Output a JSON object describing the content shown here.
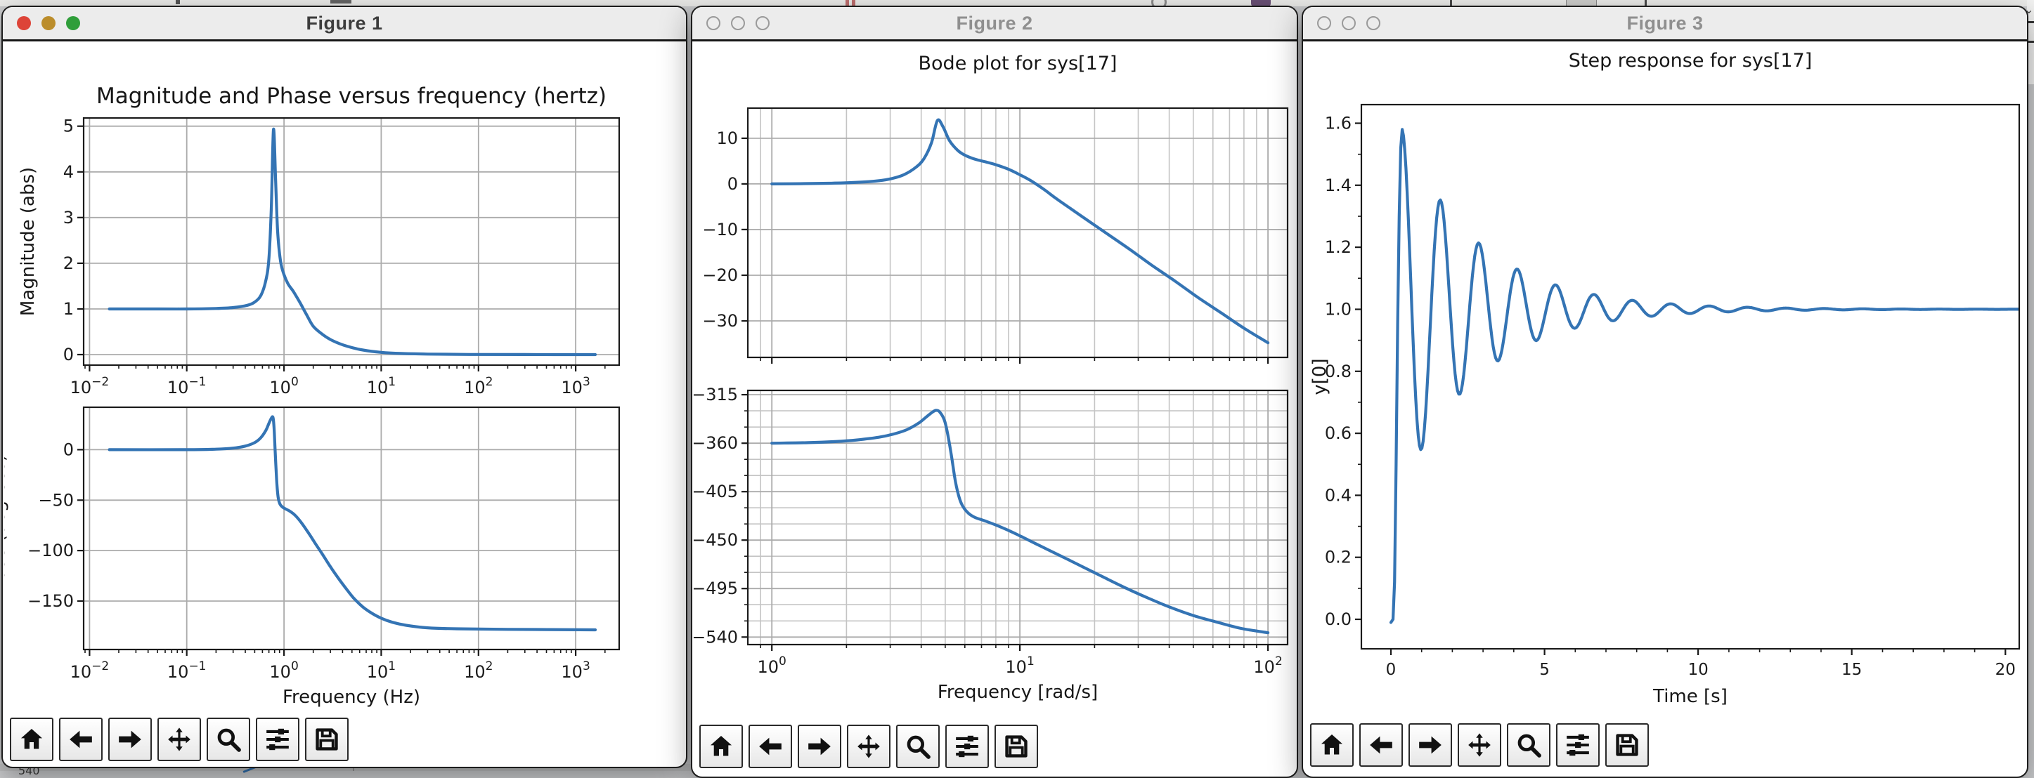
{
  "windows": [
    {
      "title": "Figure 1",
      "active": true,
      "traffic_lights": {
        "close": "#dd4438",
        "minimize": "#bb8d2b",
        "zoom": "#2f9e3a"
      },
      "toolbar": [
        "home",
        "back",
        "forward",
        "pan",
        "zoom-rect",
        "configure-subplots",
        "save"
      ]
    },
    {
      "title": "Figure 2",
      "active": false,
      "traffic_lights": {
        "style": "inactive"
      },
      "toolbar": [
        "home",
        "back",
        "forward",
        "pan",
        "zoom-rect",
        "configure-subplots",
        "save"
      ]
    },
    {
      "title": "Figure 3",
      "active": false,
      "traffic_lights": {
        "style": "inactive"
      },
      "toolbar": [
        "home",
        "back",
        "forward",
        "pan",
        "zoom-rect",
        "configure-subplots",
        "save"
      ]
    }
  ],
  "background": {
    "top_icons": [
      "pause-icon",
      "circle-icon",
      "app-badge-icon",
      "chevron-down-icon"
    ],
    "bottom_fragment": "540",
    "accent_line_color": "#3474b4"
  },
  "chart_data": [
    {
      "figure": "Figure 1",
      "type": "line",
      "suptitle": "Magnitude and Phase versus frequency (hertz)",
      "line_color": "#3474b4",
      "subplots": [
        {
          "name": "magnitude-abs",
          "ylabel": "Magnitude (abs)",
          "xscale": "log",
          "xlim": [
            0.0087,
            2800
          ],
          "ylim": [
            -0.23,
            5.18
          ],
          "yticks": [
            0,
            1,
            2,
            3,
            4,
            5
          ],
          "xticks_log": [
            -2,
            -1,
            0,
            1,
            2,
            3
          ],
          "show_xticklabels": true,
          "grid": {
            "major": true,
            "minor_x": false,
            "minor_y": false
          },
          "minor_ticks": {
            "x": true,
            "y": false
          },
          "points": [
            [
              0.016,
              1.0
            ],
            [
              0.05,
              1.0
            ],
            [
              0.1,
              1.0
            ],
            [
              0.2,
              1.01
            ],
            [
              0.3,
              1.03
            ],
            [
              0.42,
              1.08
            ],
            [
              0.5,
              1.15
            ],
            [
              0.58,
              1.3
            ],
            [
              0.65,
              1.62
            ],
            [
              0.7,
              2.1
            ],
            [
              0.74,
              3.2
            ],
            [
              0.78,
              4.93
            ],
            [
              0.82,
              3.8
            ],
            [
              0.86,
              2.7
            ],
            [
              0.92,
              2.05
            ],
            [
              1.0,
              1.75
            ],
            [
              1.1,
              1.55
            ],
            [
              1.25,
              1.38
            ],
            [
              1.45,
              1.15
            ],
            [
              1.7,
              0.88
            ],
            [
              2.0,
              0.62
            ],
            [
              2.5,
              0.44
            ],
            [
              3.2,
              0.3
            ],
            [
              4.5,
              0.18
            ],
            [
              6.5,
              0.1
            ],
            [
              10,
              0.05
            ],
            [
              16,
              0.025
            ],
            [
              30,
              0.012
            ],
            [
              80,
              0.004
            ],
            [
              300,
              0.0015
            ],
            [
              1591,
              0.0006
            ]
          ]
        },
        {
          "name": "phase-degrees",
          "ylabel": "Phase (degrees)",
          "ylabel_clipped_by_window_edge": true,
          "xlabel": "Frequency (Hz)",
          "xscale": "log",
          "xlim": [
            0.0087,
            2800
          ],
          "ylim": [
            -198,
            42
          ],
          "yticks": [
            0,
            -50,
            -100,
            -150
          ],
          "xticks_log": [
            -2,
            -1,
            0,
            1,
            2,
            3
          ],
          "show_xticklabels": true,
          "grid": {
            "major": true,
            "minor_x": false,
            "minor_y": false
          },
          "minor_ticks": {
            "x": true,
            "y": false
          },
          "points": [
            [
              0.016,
              0
            ],
            [
              0.1,
              0
            ],
            [
              0.2,
              0.5
            ],
            [
              0.3,
              1.5
            ],
            [
              0.4,
              3.5
            ],
            [
              0.5,
              7
            ],
            [
              0.58,
              12
            ],
            [
              0.65,
              19
            ],
            [
              0.7,
              26
            ],
            [
              0.74,
              31
            ],
            [
              0.77,
              32
            ],
            [
              0.79,
              22
            ],
            [
              0.81,
              0
            ],
            [
              0.84,
              -30
            ],
            [
              0.87,
              -47
            ],
            [
              0.91,
              -54
            ],
            [
              0.97,
              -57
            ],
            [
              1.05,
              -59
            ],
            [
              1.15,
              -61
            ],
            [
              1.3,
              -65
            ],
            [
              1.5,
              -72
            ],
            [
              1.8,
              -83
            ],
            [
              2.1,
              -93
            ],
            [
              2.5,
              -104
            ],
            [
              3.0,
              -116
            ],
            [
              3.6,
              -127
            ],
            [
              4.3,
              -137
            ],
            [
              5.2,
              -147
            ],
            [
              6.5,
              -156
            ],
            [
              8,
              -162
            ],
            [
              10,
              -167
            ],
            [
              13,
              -171
            ],
            [
              18,
              -174
            ],
            [
              30,
              -176.5
            ],
            [
              60,
              -177.5
            ],
            [
              200,
              -178
            ],
            [
              1591,
              -178.5
            ]
          ]
        }
      ]
    },
    {
      "figure": "Figure 2",
      "type": "line",
      "suptitle": "Bode plot for sys[17]",
      "line_color": "#3474b4",
      "subplots": [
        {
          "name": "bode-magnitude-db",
          "xscale": "log",
          "xlim": [
            0.8,
            120
          ],
          "ylim": [
            -38,
            16.6
          ],
          "yticks": [
            10,
            0,
            -10,
            -20,
            -30
          ],
          "xticks_log": [
            0,
            1,
            2
          ],
          "show_xticklabels": false,
          "grid": {
            "major": true,
            "minor_x": true,
            "minor_y": false
          },
          "minor_ticks": {
            "x": true,
            "y": false
          },
          "points": [
            [
              1,
              0
            ],
            [
              1.3,
              0.05
            ],
            [
              1.7,
              0.15
            ],
            [
              2.1,
              0.3
            ],
            [
              2.6,
              0.6
            ],
            [
              3.0,
              1.1
            ],
            [
              3.4,
              2.0
            ],
            [
              3.8,
              3.6
            ],
            [
              4.1,
              5.5
            ],
            [
              4.4,
              9.0
            ],
            [
              4.65,
              13.9
            ],
            [
              4.9,
              12.5
            ],
            [
              5.2,
              9.5
            ],
            [
              5.6,
              7.4
            ],
            [
              6.0,
              6.3
            ],
            [
              6.6,
              5.4
            ],
            [
              7.3,
              4.8
            ],
            [
              8.0,
              4.2
            ],
            [
              9.0,
              3.2
            ],
            [
              10.0,
              2.0
            ],
            [
              11,
              0.8
            ],
            [
              12.5,
              -1.2
            ],
            [
              14,
              -3.2
            ],
            [
              16,
              -5.4
            ],
            [
              19,
              -8.2
            ],
            [
              23,
              -11.3
            ],
            [
              28,
              -14.5
            ],
            [
              34,
              -17.8
            ],
            [
              42,
              -21.2
            ],
            [
              52,
              -24.8
            ],
            [
              65,
              -28.3
            ],
            [
              80,
              -31.6
            ],
            [
              100,
              -34.8
            ]
          ]
        },
        {
          "name": "bode-phase-deg",
          "xlabel": "Frequency [rad/s]",
          "xscale": "log",
          "xlim": [
            0.8,
            120
          ],
          "ylim": [
            -547,
            -311
          ],
          "yticks": [
            -315,
            -360,
            -405,
            -450,
            -495,
            -540
          ],
          "minor_y_step": 15,
          "xticks_log": [
            0,
            1,
            2
          ],
          "show_xticklabels": true,
          "grid": {
            "major": true,
            "minor_x": true,
            "minor_y": true
          },
          "minor_ticks": {
            "x": true,
            "y": true
          },
          "points": [
            [
              1,
              -360
            ],
            [
              1.4,
              -359.5
            ],
            [
              1.8,
              -358.5
            ],
            [
              2.2,
              -357
            ],
            [
              2.7,
              -354.5
            ],
            [
              3.1,
              -351.5
            ],
            [
              3.5,
              -347.5
            ],
            [
              3.9,
              -341.5
            ],
            [
              4.2,
              -335.5
            ],
            [
              4.45,
              -331
            ],
            [
              4.6,
              -329.5
            ],
            [
              4.75,
              -331
            ],
            [
              4.95,
              -338
            ],
            [
              5.1,
              -350
            ],
            [
              5.3,
              -372
            ],
            [
              5.5,
              -396
            ],
            [
              5.7,
              -411
            ],
            [
              5.9,
              -419
            ],
            [
              6.2,
              -425
            ],
            [
              6.6,
              -429
            ],
            [
              7.2,
              -432
            ],
            [
              8,
              -436
            ],
            [
              9,
              -441
            ],
            [
              10,
              -446
            ],
            [
              11.5,
              -453
            ],
            [
              13,
              -459
            ],
            [
              15,
              -466
            ],
            [
              18,
              -475
            ],
            [
              22,
              -485
            ],
            [
              27,
              -495
            ],
            [
              33,
              -504
            ],
            [
              40,
              -512
            ],
            [
              50,
              -520
            ],
            [
              62,
              -526
            ],
            [
              78,
              -532
            ],
            [
              100,
              -536
            ]
          ]
        }
      ]
    },
    {
      "figure": "Figure 3",
      "type": "line",
      "suptitle": "Step response for sys[17]",
      "line_color": "#3474b4",
      "subplots": [
        {
          "name": "step-response",
          "xlabel": "Time [s]",
          "ylabel": "y[0]",
          "xscale": "linear",
          "xlim": [
            -0.96,
            20.45
          ],
          "ylim": [
            -0.095,
            1.66
          ],
          "xticks": [
            0,
            5,
            10,
            15,
            20
          ],
          "yticks": [
            0.0,
            0.2,
            0.4,
            0.6,
            0.8,
            1.0,
            1.2,
            1.4,
            1.6
          ],
          "ytick_decimals": 1,
          "show_xticklabels": true,
          "grid": {
            "major": false,
            "minor_x": false,
            "minor_y": false
          },
          "minor_ticks": {
            "x": true,
            "y": true
          },
          "rise_points": [
            [
              0.0,
              -0.01
            ],
            [
              0.07,
              0.0
            ],
            [
              0.12,
              0.12
            ],
            [
              0.17,
              0.5
            ],
            [
              0.22,
              0.95
            ],
            [
              0.27,
              1.3
            ],
            [
              0.32,
              1.52
            ],
            [
              0.37,
              1.58
            ]
          ],
          "model": {
            "kind": "damped_cosine",
            "y_final": 1.0,
            "amplitude": 0.58,
            "decay": 0.4,
            "omega": 5.027,
            "t_peak": 0.37,
            "t_end": 20.45,
            "dt": 0.04
          },
          "peaks": [
            [
              0.37,
              1.58
            ],
            [
              1.62,
              1.33
            ],
            [
              2.87,
              1.21
            ],
            [
              4.12,
              1.15
            ],
            [
              5.37,
              1.1
            ],
            [
              6.62,
              1.08
            ],
            [
              7.87,
              1.06
            ],
            [
              9.12,
              1.05
            ],
            [
              10.37,
              1.04
            ]
          ],
          "troughs": [
            [
              1.0,
              0.6
            ],
            [
              2.25,
              0.74
            ],
            [
              3.5,
              0.83
            ],
            [
              4.75,
              0.88
            ],
            [
              6.0,
              0.91
            ],
            [
              7.25,
              0.93
            ],
            [
              8.5,
              0.945
            ],
            [
              9.75,
              0.955
            ]
          ]
        }
      ]
    }
  ]
}
